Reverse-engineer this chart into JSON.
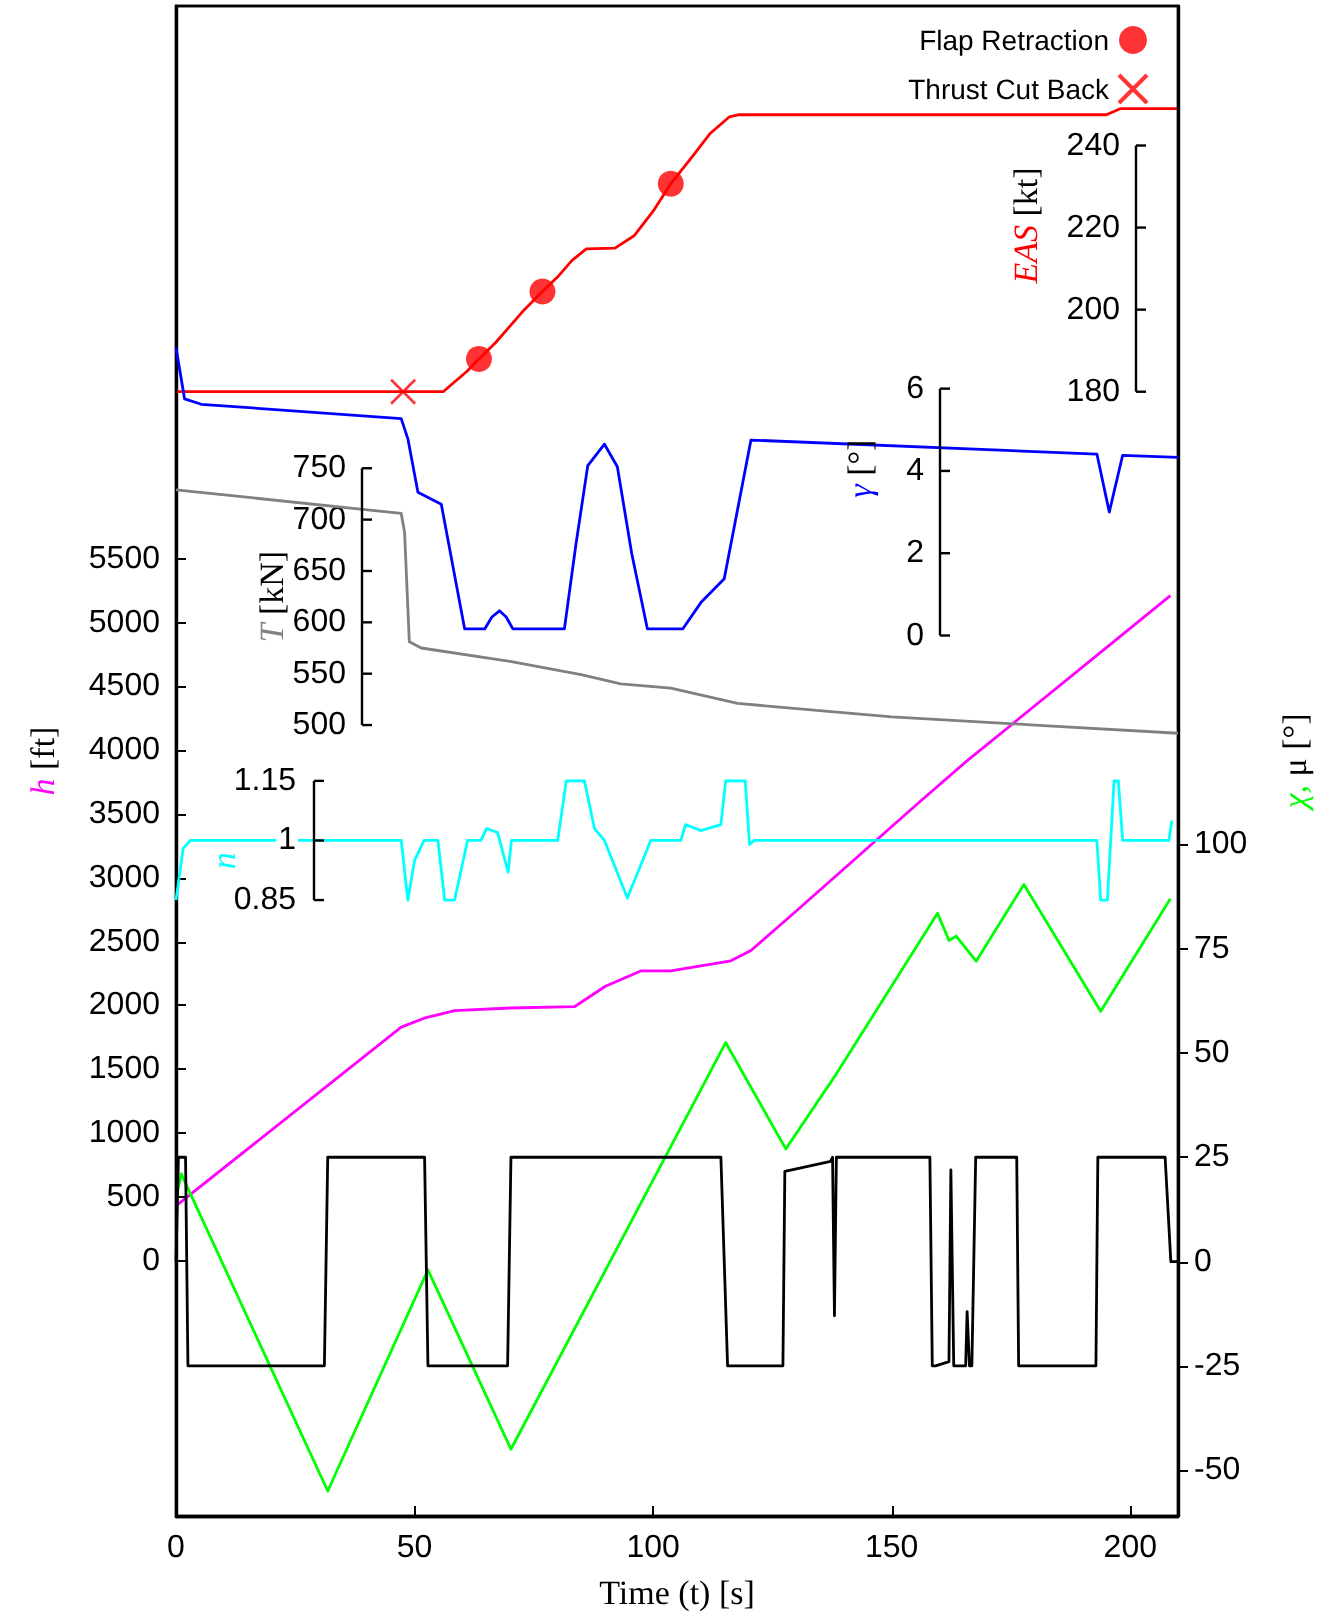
{
  "chart_data": [
    {
      "type": "line",
      "xlabel": "Time (t) [s]",
      "xlim": [
        0,
        210
      ],
      "xticks": [
        0,
        50,
        100,
        150,
        200
      ],
      "ylabel": "h [ft]",
      "ylim": [
        -2000,
        9830
      ],
      "yticks": [
        0,
        500,
        1000,
        1500,
        2000,
        2500,
        3000,
        3500,
        4000,
        4500,
        5000,
        5500
      ],
      "y2label": "χ, μ [°]",
      "y2lim": [
        -61,
        301
      ],
      "y2ticks": [
        -50,
        -25,
        0,
        25,
        50,
        75,
        100
      ],
      "y3label": "EAS [kt]",
      "y3lim": [
        -94,
        274
      ],
      "y3ticks": [
        180,
        200,
        220,
        240
      ],
      "legend": "top right",
      "marker": "none",
      "series": [
        {
          "axis": "y3",
          "color": "#ff0000",
          "x": [
            0,
            56,
            58,
            61,
            63.5,
            67,
            70,
            73,
            76.8,
            80,
            83,
            86,
            92,
            96,
            100,
            103.7,
            108,
            112,
            116,
            118,
            195,
            198,
            210
          ],
          "values": [
            180,
            180,
            182,
            185,
            188,
            192,
            196,
            200,
            204.4,
            208,
            212,
            214.8,
            215,
            218,
            224,
            230.7,
            237,
            243,
            247,
            247.5,
            247.5,
            249,
            249
          ]
        },
        {
          "type": "scatter",
          "name": "Flap Retraction",
          "marker": "circle",
          "axis": "y3",
          "color": "#ff0000",
          "x": [
            63.5,
            76.8,
            103.7
          ],
          "values": [
            188,
            204.4,
            230.7
          ]
        },
        {
          "type": "scatter",
          "name": "Thrust Cut Back",
          "marker": "cross",
          "axis": "y3",
          "color": "#ff0000",
          "x": [
            47.6
          ],
          "values": [
            180
          ]
        },
        {
          "color": "#ff00ff",
          "x": [
            0,
            47.2,
            52,
            58.4,
            70,
            83.5,
            90,
            97.4,
            103.7,
            116.3,
            120.5,
            130,
            156,
            165.9,
            195.9,
            208.4
          ],
          "values": [
            430,
            1830,
            1900,
            1960,
            1980,
            1990,
            2150,
            2270,
            2270,
            2350,
            2430,
            2740,
            3600,
            3920,
            4830,
            5210
          ]
        },
        {
          "axis": "y2",
          "color": "#00ff00",
          "x": [
            0,
            1.1,
            31.8,
            52.8,
            70.2,
            115.2,
            127.8,
            138.4,
            159.6,
            162,
            163.5,
            167.7,
            177.7,
            193.8,
            208.4
          ],
          "values": [
            15,
            21,
            -55,
            -2,
            -45,
            52.5,
            27,
            45,
            83.5,
            77,
            78,
            72,
            90.4,
            60,
            87
          ]
        },
        {
          "axis": "y2",
          "color": "#000000",
          "x": [
            0,
            0.5,
            1.1,
            2.0,
            2.5,
            31.1,
            31.8,
            52.1,
            52.8,
            69.5,
            70.2,
            114.2,
            115.6,
            127.2,
            127.6,
            137.2,
            137.6,
            138,
            138.4,
            158,
            158.5,
            159.2,
            162,
            162.4,
            163,
            164,
            165.5,
            165.8,
            166.3,
            166.8,
            167.6,
            176.2,
            176.6,
            192.8,
            193.2,
            207.3,
            208.5,
            210
          ],
          "values": [
            0,
            25,
            25,
            25,
            -25,
            -25,
            25,
            25,
            -25,
            -25,
            25,
            25,
            -25,
            -25,
            21.6,
            24,
            25,
            -13,
            25,
            25,
            -25,
            -25,
            -24,
            22,
            -25,
            -25,
            -25,
            -12,
            -25,
            -25,
            25,
            25,
            -25,
            -25,
            25,
            25,
            0,
            0
          ]
        }
      ]
    },
    {
      "type": "line",
      "xlim": [
        0,
        210
      ],
      "tick_labels": "y",
      "marker": "none",
      "ylabel": "γ [°]",
      "ylim": [
        -21.4,
        15.3
      ],
      "yticks": [
        0,
        2,
        4,
        6
      ],
      "y2label": "T [kN]",
      "y2lim": [
        -270,
        1200
      ],
      "y2ticks": [
        500,
        550,
        600,
        650,
        700,
        750
      ],
      "y3label": "n",
      "y3lim": [
        -0.7,
        3.1
      ],
      "y3ticks": [
        0.85,
        1,
        1.15
      ],
      "series": [
        {
          "color": "#0000ff",
          "x": [
            0,
            1.8,
            5.3,
            47.2,
            48.6,
            50.7,
            55.6,
            60.5,
            64.7,
            66.2,
            67.8,
            69.2,
            70.6,
            81.4,
            83.8,
            86.3,
            89.8,
            92.5,
            95.5,
            98.8,
            106.2,
            110,
            114.9,
            120.5,
            193,
            195.6,
            198.4,
            210
          ],
          "values": [
            7,
            5.75,
            5.62,
            5.27,
            4.78,
            3.48,
            3.19,
            0.16,
            0.16,
            0.45,
            0.6,
            0.45,
            0.16,
            0.16,
            2.2,
            4.13,
            4.65,
            4.1,
            2.0,
            0.16,
            0.16,
            0.8,
            1.38,
            4.75,
            4.41,
            3.0,
            4.38,
            4.33
          ]
        },
        {
          "axis": "y2",
          "color": "#808080",
          "x": [
            0,
            47.2,
            47.9,
            48.9,
            51.4,
            70,
            84.9,
            93.2,
            103.7,
            117.7,
            150,
            180,
            210
          ],
          "values": [
            729,
            706,
            688,
            581,
            575,
            562,
            549,
            540,
            536,
            521,
            508,
            500,
            492
          ]
        },
        {
          "axis": "y3",
          "color": "#00ffff",
          "x": [
            0,
            1.5,
            3,
            47.2,
            48.6,
            50,
            52,
            54.9,
            56.3,
            58.4,
            61.1,
            63.9,
            65.1,
            67.4,
            69.6,
            70.3,
            80,
            81.8,
            85.6,
            87.7,
            89.8,
            94.6,
            99.5,
            105.8,
            106.8,
            110,
            114.2,
            115.2,
            119.3,
            120.2,
            121.2,
            193,
            193.8,
            195.2,
            195.9,
            196.6,
            197.5,
            198.4,
            208.1,
            208.7
          ],
          "values": [
            0.85,
            0.98,
            1,
            1,
            0.85,
            0.95,
            1,
            1,
            0.85,
            0.85,
            1,
            1,
            1.03,
            1.02,
            0.92,
            1,
            1,
            1.15,
            1.15,
            1.03,
            1,
            0.855,
            1,
            1,
            1.04,
            1.025,
            1.04,
            1.15,
            1.15,
            0.99,
            1,
            1,
            0.85,
            0.85,
            1,
            1.15,
            1.15,
            1,
            1,
            1.05
          ]
        }
      ]
    }
  ]
}
